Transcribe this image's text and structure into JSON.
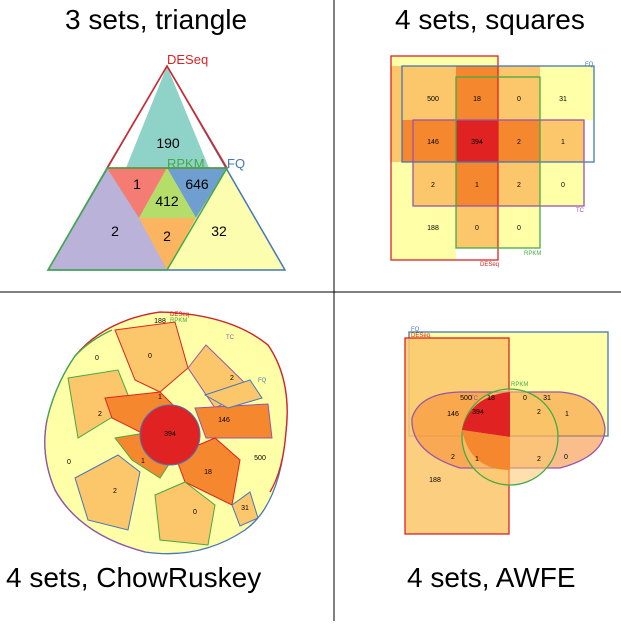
{
  "panels": {
    "triangle": {
      "title": "3 sets, triangle",
      "labels": {
        "deseq": "DESeq",
        "rpkm": "RPKM",
        "fq": "FQ"
      },
      "counts": {
        "deseq_only": "190",
        "deseq_rpkm": "1",
        "deseq_fq": "646",
        "all": "412",
        "rpkm_only": "2",
        "rpkm_fq": "2",
        "fq_only": "32"
      }
    },
    "squares": {
      "title": "4 sets, squares",
      "labels": {
        "fq": "FQ",
        "tc": "TC",
        "rpkm": "RPKM",
        "deseq": "DESeq"
      },
      "cells": [
        "500",
        "18",
        "0",
        "31",
        "146",
        "394",
        "2",
        "1",
        "2",
        "1",
        "2",
        "0",
        "188",
        "0",
        "0"
      ]
    },
    "chowruskey": {
      "title": "4 sets, ChowRuskey",
      "labels": {
        "deseq": "DESeq",
        "rpkm": "RPKM",
        "tc": "TC",
        "fq": "FQ"
      },
      "counts": [
        "188",
        "0",
        "0",
        "2",
        "1",
        "146",
        "394",
        "2",
        "0",
        "1",
        "18",
        "500",
        "0",
        "31"
      ]
    },
    "awfe": {
      "title": "4 sets, AWFE",
      "labels": {
        "fq": "FQ",
        "deseq": "DESeq",
        "tc": "TC",
        "rpkm": "RPKM"
      },
      "counts": [
        "500",
        "18",
        "0",
        "31",
        "146",
        "394",
        "2",
        "1",
        "2",
        "1",
        "2",
        "0",
        "188"
      ]
    }
  },
  "colors": {
    "deseq": "#dd2222",
    "rpkm": "#44aa44",
    "fq": "#4477bb",
    "tc": "#9955aa",
    "level1": "#ffffa8",
    "level2": "#fcc66a",
    "level3": "#f5882f",
    "level4": "#e02222"
  }
}
